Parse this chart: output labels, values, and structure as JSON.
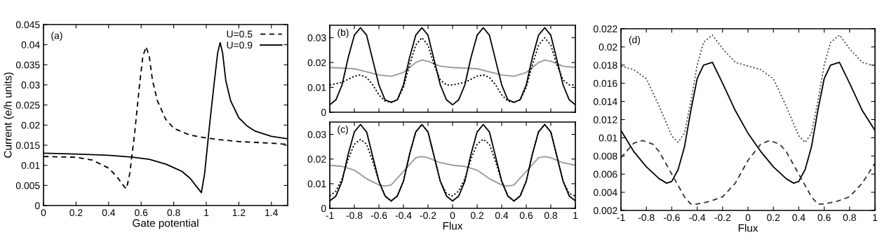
{
  "chart_data": [
    {
      "type": "line",
      "xlabel": "Gate potential",
      "ylabel": "Current (e/h units)",
      "annotations": [
        "(a)"
      ],
      "xlim": [
        0,
        1.5
      ],
      "xticks": [
        0,
        0.2,
        0.4,
        0.6,
        0.8,
        1,
        1.2,
        1.4
      ],
      "ylim": [
        0,
        0.045
      ],
      "yticks": [
        0,
        0.005,
        0.01,
        0.015,
        0.02,
        0.025,
        0.03,
        0.035,
        0.04,
        0.045
      ],
      "legend": "top right",
      "grid": false,
      "series": [
        {
          "name": "U=0.5",
          "color": "#000000",
          "line_style": "dashed",
          "x": [
            0,
            0.1,
            0.2,
            0.3,
            0.4,
            0.45,
            0.5,
            0.51,
            0.53,
            0.56,
            0.59,
            0.61,
            0.63,
            0.65,
            0.67,
            0.7,
            0.75,
            0.8,
            0.9,
            1.0,
            1.1,
            1.2,
            1.3,
            1.4,
            1.5
          ],
          "values": [
            0.0122,
            0.0121,
            0.012,
            0.0113,
            0.0093,
            0.0072,
            0.0045,
            0.0042,
            0.008,
            0.018,
            0.03,
            0.037,
            0.0395,
            0.037,
            0.031,
            0.026,
            0.0215,
            0.0192,
            0.0175,
            0.0168,
            0.0163,
            0.0159,
            0.0157,
            0.0155,
            0.0152
          ]
        },
        {
          "name": "U=0.9",
          "color": "#000000",
          "line_style": "solid",
          "x": [
            0,
            0.2,
            0.4,
            0.55,
            0.65,
            0.75,
            0.85,
            0.9,
            0.95,
            0.97,
            0.99,
            1.02,
            1.05,
            1.07,
            1.085,
            1.1,
            1.12,
            1.15,
            1.2,
            1.25,
            1.3,
            1.4,
            1.5
          ],
          "values": [
            0.013,
            0.0128,
            0.0125,
            0.012,
            0.0115,
            0.0103,
            0.0085,
            0.0068,
            0.0042,
            0.0032,
            0.008,
            0.02,
            0.031,
            0.038,
            0.0405,
            0.038,
            0.031,
            0.026,
            0.0218,
            0.0198,
            0.0185,
            0.0172,
            0.0166
          ]
        }
      ]
    },
    {
      "type": "line",
      "annotations": [
        "(b)"
      ],
      "xlim": [
        -1,
        1
      ],
      "xticks": [
        -1,
        -0.8,
        -0.6,
        -0.4,
        -0.2,
        0,
        0.2,
        0.4,
        0.6,
        0.8,
        1
      ],
      "ylim": [
        0,
        0.035
      ],
      "yticks": [
        0,
        0.01,
        0.02,
        0.03
      ],
      "tick_labels": "y",
      "legend": false,
      "grid": false,
      "series": [
        {
          "color": "#999999",
          "line_style": "solid",
          "x": [
            -1,
            -0.8,
            -0.6,
            -0.5,
            -0.4,
            -0.3,
            -0.25,
            -0.2,
            -0.1,
            0,
            0.2,
            0.4,
            0.5,
            0.6,
            0.7,
            0.75,
            0.8,
            0.9,
            1
          ],
          "values": [
            0.018,
            0.0175,
            0.015,
            0.0145,
            0.016,
            0.02,
            0.021,
            0.0205,
            0.0185,
            0.018,
            0.0175,
            0.015,
            0.0145,
            0.016,
            0.02,
            0.021,
            0.0205,
            0.0185,
            0.018
          ]
        },
        {
          "color": "#000000",
          "line_style": "dotted",
          "x": [
            -1,
            -0.9,
            -0.8,
            -0.75,
            -0.7,
            -0.65,
            -0.6,
            -0.55,
            -0.5,
            -0.45,
            -0.4,
            -0.35,
            -0.3,
            -0.25,
            -0.2,
            -0.15,
            -0.1,
            -0.05,
            0,
            0.1,
            0.2,
            0.25,
            0.3,
            0.35,
            0.4,
            0.45,
            0.5,
            0.55,
            0.6,
            0.65,
            0.7,
            0.75,
            0.8,
            0.85,
            0.9,
            0.95,
            1
          ],
          "values": [
            0.011,
            0.012,
            0.0145,
            0.015,
            0.014,
            0.011,
            0.007,
            0.0045,
            0.004,
            0.005,
            0.01,
            0.019,
            0.027,
            0.03,
            0.027,
            0.019,
            0.013,
            0.011,
            0.011,
            0.012,
            0.0145,
            0.015,
            0.014,
            0.011,
            0.007,
            0.0045,
            0.004,
            0.005,
            0.01,
            0.019,
            0.027,
            0.03,
            0.027,
            0.019,
            0.013,
            0.011,
            0.011
          ]
        },
        {
          "color": "#000000",
          "line_style": "solid",
          "x": [
            -1,
            -0.95,
            -0.9,
            -0.85,
            -0.8,
            -0.75,
            -0.7,
            -0.65,
            -0.6,
            -0.55,
            -0.5,
            -0.45,
            -0.4,
            -0.35,
            -0.3,
            -0.25,
            -0.2,
            -0.15,
            -0.1,
            -0.05,
            0,
            0.05,
            0.1,
            0.15,
            0.2,
            0.25,
            0.3,
            0.35,
            0.4,
            0.45,
            0.5,
            0.55,
            0.6,
            0.65,
            0.7,
            0.75,
            0.8,
            0.85,
            0.9,
            0.95,
            1
          ],
          "values": [
            0.003,
            0.005,
            0.011,
            0.022,
            0.031,
            0.034,
            0.031,
            0.021,
            0.011,
            0.005,
            0.004,
            0.005,
            0.011,
            0.022,
            0.031,
            0.034,
            0.031,
            0.021,
            0.011,
            0.005,
            0.003,
            0.005,
            0.011,
            0.022,
            0.031,
            0.034,
            0.031,
            0.021,
            0.011,
            0.005,
            0.004,
            0.005,
            0.011,
            0.022,
            0.031,
            0.034,
            0.031,
            0.021,
            0.011,
            0.005,
            0.003
          ]
        }
      ]
    },
    {
      "type": "line",
      "xlabel": "Flux",
      "annotations": [
        "(c)"
      ],
      "xlim": [
        -1,
        1
      ],
      "xticks": [
        -1,
        -0.8,
        -0.6,
        -0.4,
        -0.2,
        0,
        0.2,
        0.4,
        0.6,
        0.8,
        1
      ],
      "ylim": [
        0,
        0.035
      ],
      "yticks": [
        0,
        0.01,
        0.02,
        0.03
      ],
      "legend": false,
      "grid": false,
      "series": [
        {
          "color": "#999999",
          "line_style": "solid",
          "x": [
            -1,
            -0.9,
            -0.8,
            -0.7,
            -0.6,
            -0.55,
            -0.5,
            -0.4,
            -0.3,
            -0.25,
            -0.2,
            -0.1,
            0,
            0.1,
            0.2,
            0.3,
            0.4,
            0.45,
            0.5,
            0.6,
            0.7,
            0.75,
            0.8,
            0.9,
            1
          ],
          "values": [
            0.0175,
            0.017,
            0.0155,
            0.012,
            0.0095,
            0.009,
            0.0095,
            0.015,
            0.0205,
            0.021,
            0.0205,
            0.0185,
            0.0175,
            0.017,
            0.0155,
            0.012,
            0.0095,
            0.009,
            0.0095,
            0.015,
            0.0205,
            0.021,
            0.0205,
            0.0185,
            0.0175
          ]
        },
        {
          "color": "#000000",
          "line_style": "dotted",
          "x": [
            -1,
            -0.95,
            -0.9,
            -0.85,
            -0.8,
            -0.75,
            -0.7,
            -0.65,
            -0.6,
            -0.55,
            -0.5,
            -0.45,
            -0.4,
            -0.35,
            -0.3,
            -0.25,
            -0.2,
            -0.15,
            -0.1,
            -0.05,
            0,
            0.05,
            0.1,
            0.15,
            0.2,
            0.25,
            0.3,
            0.35,
            0.4,
            0.45,
            0.5,
            0.55,
            0.6,
            0.65,
            0.7,
            0.75,
            0.8,
            0.85,
            0.9,
            0.95,
            1
          ],
          "values": [
            0.005,
            0.007,
            0.012,
            0.02,
            0.026,
            0.028,
            0.026,
            0.019,
            0.011,
            0.005,
            0.003,
            0.005,
            0.011,
            0.022,
            0.031,
            0.034,
            0.031,
            0.021,
            0.011,
            0.006,
            0.005,
            0.007,
            0.012,
            0.02,
            0.026,
            0.028,
            0.026,
            0.019,
            0.011,
            0.005,
            0.003,
            0.005,
            0.011,
            0.022,
            0.031,
            0.034,
            0.031,
            0.021,
            0.011,
            0.006,
            0.005
          ]
        },
        {
          "color": "#000000",
          "line_style": "solid",
          "x": [
            -1,
            -0.95,
            -0.9,
            -0.85,
            -0.8,
            -0.75,
            -0.7,
            -0.65,
            -0.6,
            -0.55,
            -0.5,
            -0.45,
            -0.4,
            -0.35,
            -0.3,
            -0.25,
            -0.2,
            -0.15,
            -0.1,
            -0.05,
            0,
            0.05,
            0.1,
            0.15,
            0.2,
            0.25,
            0.3,
            0.35,
            0.4,
            0.45,
            0.5,
            0.55,
            0.6,
            0.65,
            0.7,
            0.75,
            0.8,
            0.85,
            0.9,
            0.95,
            1
          ],
          "values": [
            0.003,
            0.005,
            0.011,
            0.022,
            0.031,
            0.034,
            0.031,
            0.021,
            0.011,
            0.005,
            0.003,
            0.005,
            0.011,
            0.022,
            0.031,
            0.034,
            0.031,
            0.021,
            0.011,
            0.005,
            0.003,
            0.005,
            0.011,
            0.022,
            0.031,
            0.034,
            0.031,
            0.021,
            0.011,
            0.005,
            0.003,
            0.005,
            0.011,
            0.022,
            0.031,
            0.034,
            0.031,
            0.021,
            0.011,
            0.005,
            0.003
          ]
        }
      ]
    },
    {
      "type": "line",
      "xlabel": "Flux",
      "annotations": [
        "(d)"
      ],
      "xlim": [
        -1,
        1
      ],
      "xticks": [
        -1,
        -0.8,
        -0.6,
        -0.4,
        -0.2,
        0,
        0.2,
        0.4,
        0.6,
        0.8,
        1
      ],
      "ylim": [
        0.002,
        0.022
      ],
      "yticks": [
        0.002,
        0.004,
        0.006,
        0.008,
        0.01,
        0.012,
        0.014,
        0.016,
        0.018,
        0.02,
        0.022
      ],
      "legend": false,
      "grid": false,
      "series": [
        {
          "color": "#555555",
          "line_style": "dotted",
          "x": [
            -1,
            -0.9,
            -0.8,
            -0.7,
            -0.6,
            -0.55,
            -0.5,
            -0.45,
            -0.4,
            -0.35,
            -0.28,
            -0.2,
            -0.1,
            0,
            0.1,
            0.2,
            0.3,
            0.4,
            0.45,
            0.5,
            0.55,
            0.6,
            0.65,
            0.72,
            0.8,
            0.9,
            1
          ],
          "values": [
            0.0179,
            0.0175,
            0.0165,
            0.0135,
            0.0102,
            0.0095,
            0.0105,
            0.014,
            0.018,
            0.0205,
            0.0213,
            0.0198,
            0.0183,
            0.0179,
            0.0175,
            0.0165,
            0.0135,
            0.0102,
            0.0095,
            0.0105,
            0.014,
            0.018,
            0.0205,
            0.0213,
            0.0198,
            0.0183,
            0.0179
          ]
        },
        {
          "color": "#000000",
          "line_style": "solid",
          "x": [
            -1,
            -0.9,
            -0.8,
            -0.7,
            -0.64,
            -0.6,
            -0.55,
            -0.5,
            -0.45,
            -0.4,
            -0.35,
            -0.28,
            -0.2,
            -0.1,
            0,
            0.1,
            0.2,
            0.3,
            0.36,
            0.4,
            0.45,
            0.5,
            0.55,
            0.6,
            0.65,
            0.72,
            0.8,
            0.9,
            1
          ],
          "values": [
            0.0108,
            0.0085,
            0.0068,
            0.0055,
            0.005,
            0.0052,
            0.0065,
            0.009,
            0.013,
            0.0165,
            0.018,
            0.0183,
            0.016,
            0.013,
            0.0105,
            0.0085,
            0.0068,
            0.0055,
            0.005,
            0.0052,
            0.0065,
            0.009,
            0.013,
            0.0165,
            0.018,
            0.0183,
            0.016,
            0.013,
            0.0108
          ]
        },
        {
          "color": "#333333",
          "line_style": "dashed",
          "x": [
            -1,
            -0.9,
            -0.83,
            -0.75,
            -0.7,
            -0.6,
            -0.5,
            -0.45,
            -0.4,
            -0.3,
            -0.2,
            -0.1,
            0,
            0.1,
            0.17,
            0.25,
            0.3,
            0.4,
            0.5,
            0.55,
            0.6,
            0.7,
            0.8,
            0.9,
            1
          ],
          "values": [
            0.0078,
            0.0094,
            0.0097,
            0.0093,
            0.0085,
            0.006,
            0.0035,
            0.0027,
            0.0027,
            0.003,
            0.0035,
            0.005,
            0.0075,
            0.0093,
            0.0097,
            0.0093,
            0.0085,
            0.006,
            0.0035,
            0.0027,
            0.0027,
            0.003,
            0.0035,
            0.005,
            0.0072
          ]
        }
      ]
    }
  ]
}
